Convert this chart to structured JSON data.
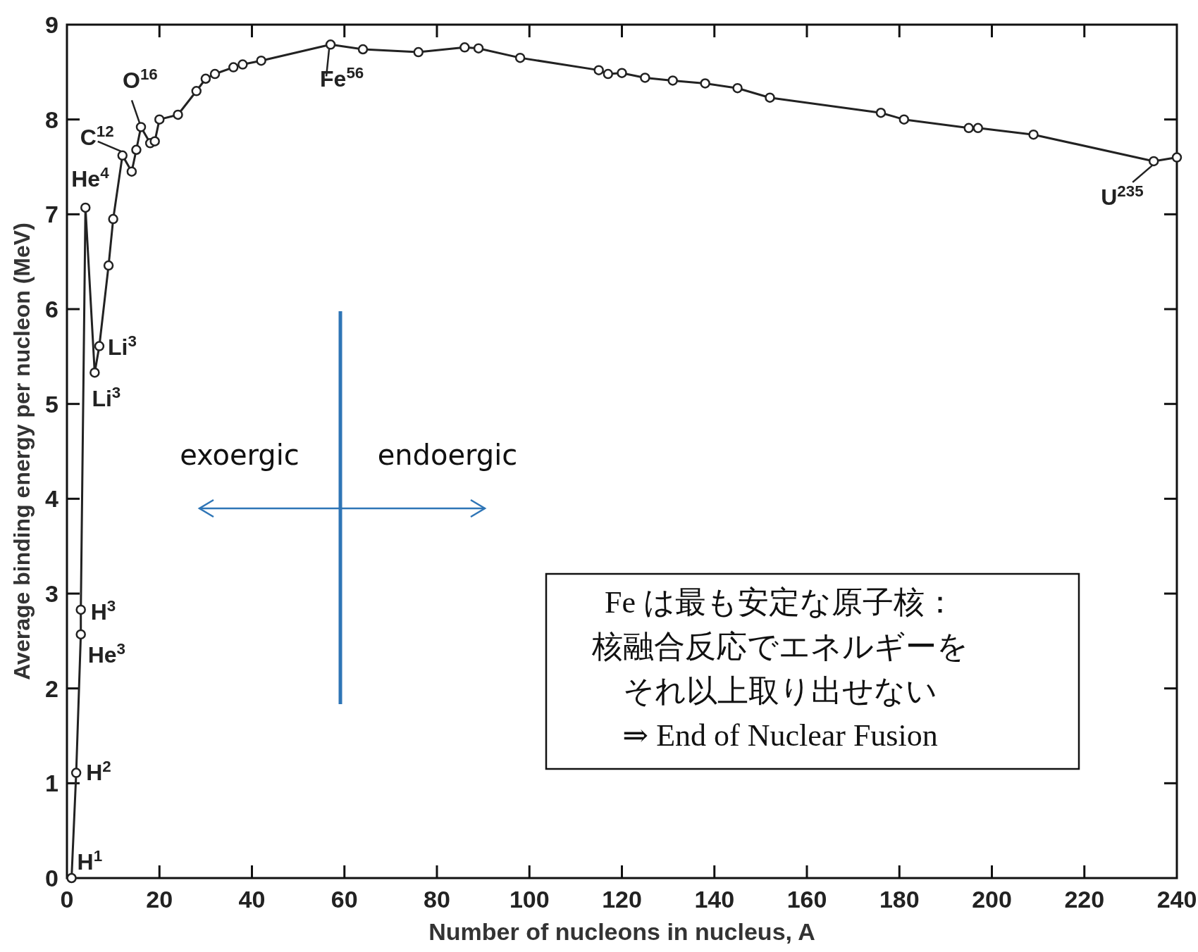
{
  "chart_data": {
    "type": "line",
    "xlabel": "Number of nucleons in nucleus, A",
    "ylabel": "Average binding energy per nucleon (MeV)",
    "xlim": [
      0,
      240
    ],
    "xticks": [
      0,
      20,
      40,
      60,
      80,
      100,
      120,
      140,
      160,
      180,
      200,
      220,
      240
    ],
    "ylim": [
      0,
      9
    ],
    "yticks": [
      0,
      1,
      2,
      3,
      4,
      5,
      6,
      7,
      8,
      9
    ],
    "marker": "circle",
    "line_style": "solid",
    "grid": false,
    "series": [
      {
        "color": "#222222",
        "x": [
          1,
          2,
          3,
          3,
          4,
          6,
          7,
          9,
          10,
          12,
          14,
          15,
          16,
          18,
          19,
          20,
          24,
          28,
          30,
          32,
          36,
          38,
          42,
          57,
          64,
          76,
          86,
          89,
          98,
          115,
          117,
          120,
          125,
          131,
          138,
          145,
          152,
          176,
          181,
          195,
          197,
          209,
          235,
          240
        ],
        "values": [
          0,
          1.11,
          2.57,
          2.83,
          7.07,
          5.33,
          5.61,
          6.46,
          6.95,
          7.62,
          7.45,
          7.68,
          7.92,
          7.75,
          7.77,
          8.0,
          8.05,
          8.3,
          8.43,
          8.48,
          8.55,
          8.58,
          8.62,
          8.79,
          8.74,
          8.71,
          8.76,
          8.75,
          8.65,
          8.52,
          8.48,
          8.49,
          8.44,
          8.41,
          8.38,
          8.33,
          8.23,
          8.07,
          8.0,
          7.91,
          7.91,
          7.84,
          7.56,
          7.6
        ]
      }
    ],
    "annotations": [
      {
        "text": "H$^{1}$",
        "x": 1,
        "y": 0
      },
      {
        "text": "H$^{2}$",
        "x": 2,
        "y": 1.11
      },
      {
        "text": "H$^{3}$",
        "x": 3,
        "y": 2.83
      },
      {
        "text": "He$^{3}$",
        "x": 3,
        "y": 2.57
      },
      {
        "text": "He$^{4}$",
        "x": 4,
        "y": 7.07
      },
      {
        "text": "Li$^{3}$",
        "x": 7,
        "y": 5.61
      },
      {
        "text": "Li$^{3}$",
        "x": 6,
        "y": 5.33
      },
      {
        "text": "C$^{12}$",
        "x": 12,
        "y": 7.62
      },
      {
        "text": "O$^{16}$",
        "x": 16,
        "y": 7.92
      },
      {
        "text": "Fe$^{56}$",
        "x": 57,
        "y": 8.79
      },
      {
        "text": "U$^{235}$",
        "x": 235,
        "y": 7.56
      },
      "exoergic",
      "endoergic",
      "Fe は最も安定な原子核：",
      "核融合反応でエネルギーを",
      "それ以上取り出せない",
      "⇒ End of Nuclear Fusion"
    ]
  }
}
